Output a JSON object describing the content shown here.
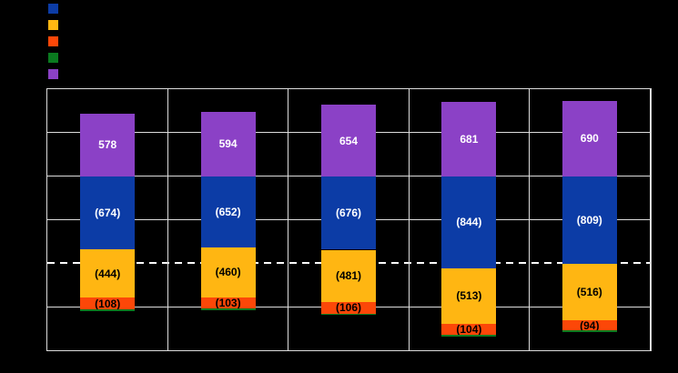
{
  "canvas": {
    "background": "#000000"
  },
  "legend": {
    "items": [
      {
        "name": "legend-series-blue",
        "color": "#0C3CA6",
        "label": ""
      },
      {
        "name": "legend-series-amber",
        "color": "#FFB612",
        "label": ""
      },
      {
        "name": "legend-series-orange",
        "color": "#FC4708",
        "label": ""
      },
      {
        "name": "legend-series-green",
        "color": "#0A7A1F",
        "label": ""
      },
      {
        "name": "legend-series-purple",
        "color": "#8B41C6",
        "label": ""
      }
    ]
  },
  "chart_data": {
    "type": "bar",
    "subtype": "stacked-positive-negative",
    "title": "",
    "xlabel": "",
    "ylabel": "",
    "categories": [
      "",
      "",
      "",
      "",
      ""
    ],
    "series": [
      {
        "name": "purple",
        "color": "#8B41C6",
        "sign": "positive",
        "values": [
          578,
          594,
          654,
          681,
          690
        ],
        "labels": [
          "578",
          "594",
          "654",
          "681",
          "690"
        ],
        "label_color": "#FFFFFF"
      },
      {
        "name": "blue",
        "color": "#0C3CA6",
        "sign": "negative",
        "values": [
          674,
          652,
          676,
          844,
          809
        ],
        "labels": [
          "(674)",
          "(652)",
          "(676)",
          "(844)",
          "(809)"
        ],
        "label_color": "#FFFFFF"
      },
      {
        "name": "amber",
        "color": "#FFB612",
        "sign": "negative",
        "values": [
          444,
          460,
          481,
          513,
          516
        ],
        "labels": [
          "(444)",
          "(460)",
          "(481)",
          "(513)",
          "(516)"
        ],
        "label_color": "#000000"
      },
      {
        "name": "orange",
        "color": "#FC4708",
        "sign": "negative",
        "values": [
          108,
          103,
          106,
          104,
          94
        ],
        "labels": [
          "(108)",
          "(103)",
          "(106)",
          "(104)",
          "(94)"
        ],
        "label_color": "#000000"
      },
      {
        "name": "green",
        "color": "#0A7A1F",
        "sign": "negative",
        "values": [
          15,
          15,
          15,
          15,
          15
        ],
        "values_estimated": true,
        "labels": null,
        "label_color": null
      }
    ],
    "axis": {
      "grid_rows": 6,
      "units_per_row": 400,
      "zero_at_row": 2,
      "grid_color": "#DCDCDC",
      "dashed_reference_row": 4,
      "dashed_line_color": "#FFFFFF",
      "tick_labels_visible": false,
      "legend_position": "top-left"
    }
  }
}
